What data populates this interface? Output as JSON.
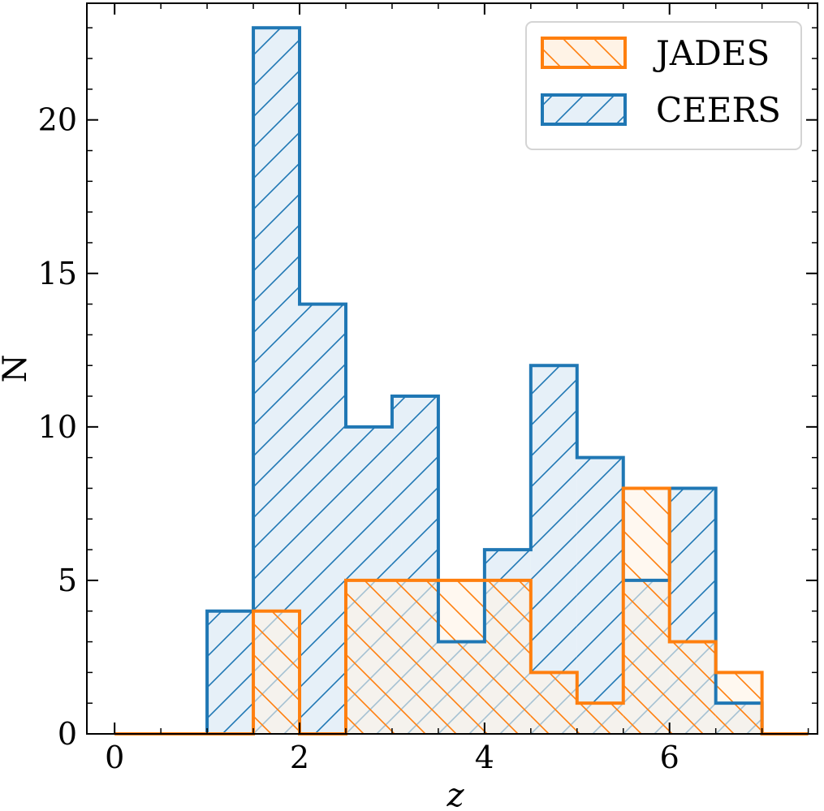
{
  "chart_data": {
    "type": "histogram",
    "title": "",
    "xlabel": "z",
    "ylabel": "N",
    "xlim": [
      -0.3,
      7.6
    ],
    "ylim": [
      0,
      23.8
    ],
    "xticks": [
      0,
      2,
      4,
      6
    ],
    "xtick_labels": [
      "0",
      "2",
      "4",
      "6"
    ],
    "yticks": [
      0,
      5,
      10,
      15,
      20
    ],
    "ytick_labels": [
      "0",
      "5",
      "10",
      "15",
      "20"
    ],
    "bin_edges": [
      0,
      0.5,
      1,
      1.5,
      2,
      2.5,
      3,
      3.5,
      4,
      4.5,
      5,
      5.5,
      6,
      6.5,
      7,
      7.5
    ],
    "legend_position": "top-right",
    "grid": false,
    "series": [
      {
        "name": "JADES",
        "color": "#ff7f0e",
        "fill": "#fff3e6",
        "hatch": "backslash",
        "values": [
          0,
          0,
          0,
          4,
          0,
          5,
          5,
          5,
          5,
          2,
          1,
          8,
          3,
          2,
          0
        ]
      },
      {
        "name": "CEERS",
        "color": "#1f77b4",
        "fill": "#e6f0f8",
        "hatch": "slash",
        "values": [
          0,
          0,
          4,
          23,
          14,
          10,
          11,
          3,
          6,
          12,
          9,
          5,
          8,
          1,
          0
        ]
      }
    ]
  }
}
